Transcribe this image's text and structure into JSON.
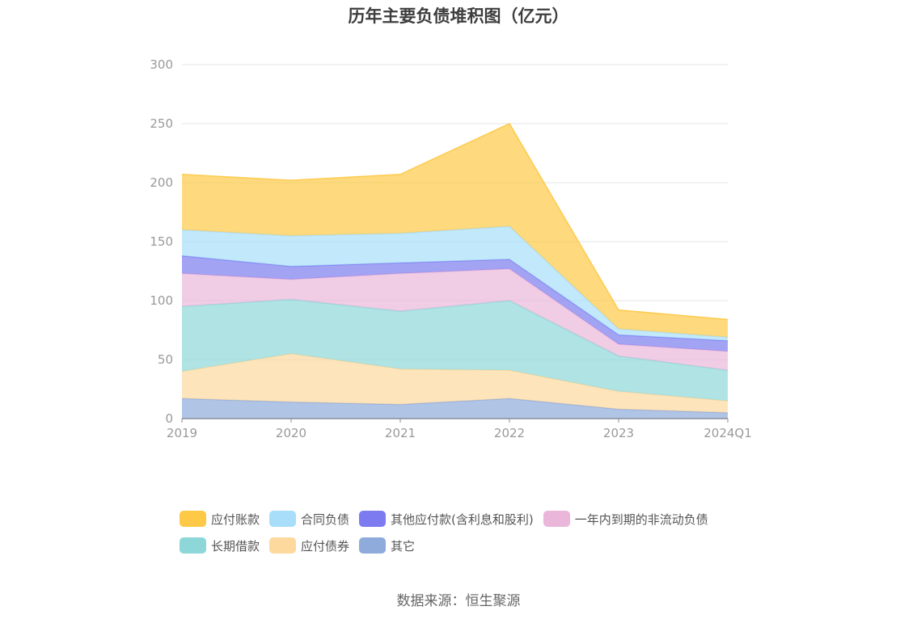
{
  "chart_data": {
    "type": "area",
    "stacked": true,
    "title": "历年主要负债堆积图（亿元）",
    "categories": [
      "2019",
      "2020",
      "2021",
      "2022",
      "2023",
      "2024Q1"
    ],
    "ylim": [
      0,
      300
    ],
    "yticks": [
      0,
      50,
      100,
      150,
      200,
      250,
      300
    ],
    "grid": true,
    "legend_position": "bottom",
    "series": [
      {
        "name": "其它",
        "color": "#8fabdb",
        "values": [
          17,
          14,
          12,
          17,
          8,
          5
        ]
      },
      {
        "name": "应付债券",
        "color": "#fdd99e",
        "values": [
          23,
          41,
          30,
          24,
          15,
          10
        ]
      },
      {
        "name": "长期借款",
        "color": "#8ed7d8",
        "values": [
          55,
          46,
          49,
          59,
          30,
          26
        ]
      },
      {
        "name": "一年内到期的非流动负债",
        "color": "#eab7da",
        "values": [
          28,
          17,
          32,
          27,
          10,
          16
        ]
      },
      {
        "name": "其他应付款(含利息和股利)",
        "color": "#7c7cf0",
        "values": [
          15,
          11,
          9,
          8,
          8,
          9
        ]
      },
      {
        "name": "合同负债",
        "color": "#a8def9",
        "values": [
          22,
          26,
          25,
          28,
          5,
          3
        ]
      },
      {
        "name": "应付账款",
        "color": "#fdc946",
        "values": [
          47,
          47,
          50,
          87,
          16,
          15
        ]
      }
    ]
  },
  "legend_rows": [
    [
      {
        "label": "应付账款",
        "color": "#fdc946"
      },
      {
        "label": "合同负债",
        "color": "#a8def9"
      },
      {
        "label": "其他应付款(含利息和股利)",
        "color": "#7c7cf0"
      },
      {
        "label": "一年内到期的非流动负债",
        "color": "#eab7da"
      }
    ],
    [
      {
        "label": "长期借款",
        "color": "#8ed7d8"
      },
      {
        "label": "应付债券",
        "color": "#fdd99e"
      },
      {
        "label": "其它",
        "color": "#8fabdb"
      }
    ]
  ],
  "source": "数据来源：恒生聚源"
}
